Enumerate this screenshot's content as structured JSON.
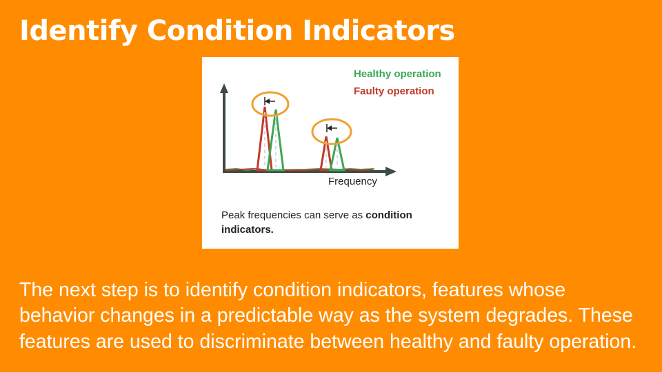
{
  "title": "Identify Condition Indicators",
  "figure": {
    "legend": [
      {
        "label": "Healthy operation",
        "color": "#3aa856"
      },
      {
        "label": "Faulty operation",
        "color": "#c0392b"
      }
    ],
    "x_axis_label": "Frequency",
    "caption_text": "Peak frequencies can serve as ",
    "caption_bold": "condition indicators.",
    "highlight_color": "#f0a030",
    "axis_color": "#3d4a4a"
  },
  "body_text": "The next step is to identify condition indicators, features whose behavior changes in a predictable way as the system degrades. These features are used to discriminate between healthy and faulty operation."
}
